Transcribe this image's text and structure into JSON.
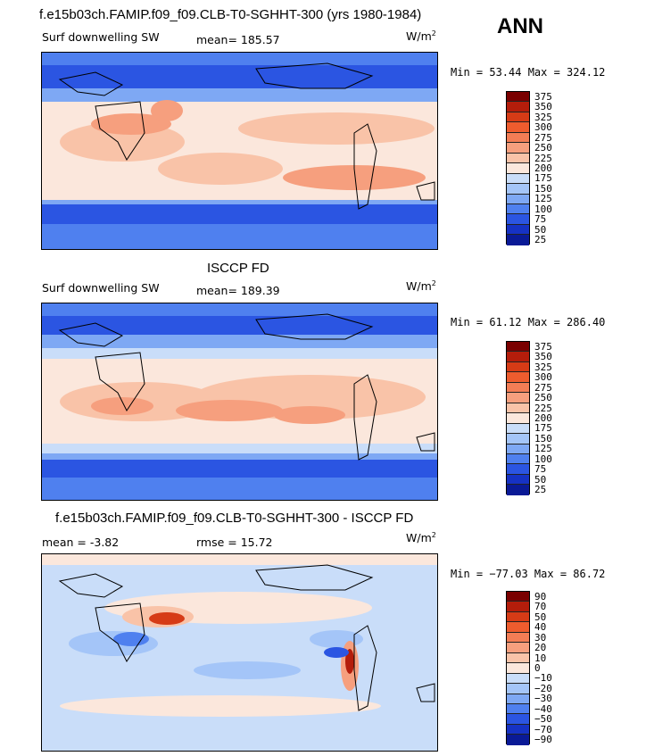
{
  "season": "ANN",
  "units": "W/m",
  "units_sup": "2",
  "panels": [
    {
      "title": "f.e15b03ch.FAMIP.f09_f09.CLB-T0-SGHHT-300 (yrs 1980-1984)",
      "left_label": "Surf downwelling SW",
      "mid_label": "mean= 185.57",
      "minmax": "Min =  53.44 Max = 324.12",
      "colorbar": [
        "375",
        "350",
        "325",
        "300",
        "275",
        "250",
        "225",
        "200",
        "175",
        "150",
        "125",
        "100",
        "75",
        "50",
        "25"
      ]
    },
    {
      "title": "ISCCP FD",
      "left_label": "Surf downwelling SW",
      "mid_label": "mean= 189.39",
      "minmax": "Min =  61.12 Max = 286.40",
      "colorbar": [
        "375",
        "350",
        "325",
        "300",
        "275",
        "250",
        "225",
        "200",
        "175",
        "150",
        "125",
        "100",
        "75",
        "50",
        "25"
      ]
    },
    {
      "title": "f.e15b03ch.FAMIP.f09_f09.CLB-T0-SGHHT-300 - ISCCP FD",
      "left_label": "mean =  -3.82",
      "mid_label": "rmse =  15.72",
      "minmax": "Min = −77.03 Max =  86.72",
      "colorbar": [
        "90",
        "70",
        "50",
        "40",
        "30",
        "20",
        "10",
        "0",
        "−10",
        "−20",
        "−30",
        "−40",
        "−50",
        "−70",
        "−90"
      ]
    }
  ],
  "colors": {
    "scale": [
      "#7a0000",
      "#b41d0b",
      "#d63b16",
      "#ee5c2e",
      "#f37d55",
      "#f69f7e",
      "#f9c3a8",
      "#fbe7dc",
      "#c9ddf9",
      "#a4c5f8",
      "#7ea8f4",
      "#4f80ef",
      "#2b55e2",
      "#1632c4",
      "#0a1a96"
    ],
    "coast": "#000000"
  }
}
